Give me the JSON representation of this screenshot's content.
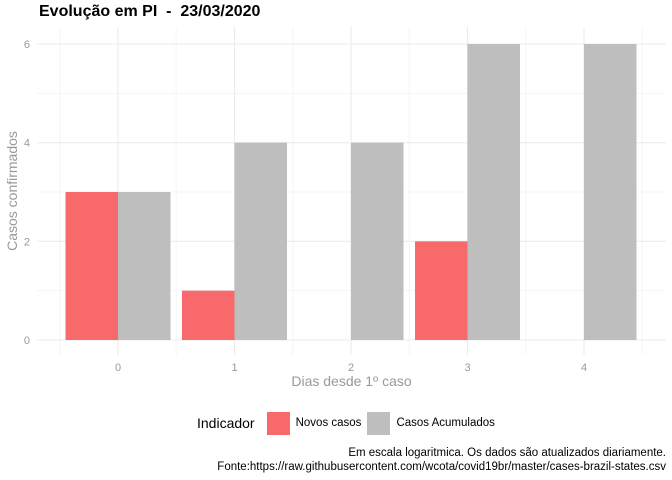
{
  "title": "Evolução em PI  -  23/03/2020",
  "caption": {
    "line1": "Em escala logaritmica. Os dados são atualizados diariamente.",
    "line2": "Fonte:https://raw.githubusercontent.com/wcota/covid19br/master/cases-brazil-states.csv"
  },
  "legend": {
    "title": "Indicador"
  },
  "colors": {
    "novos": "#f8696b",
    "acumulados": "#bebebe",
    "grid_major": "#ebebeb",
    "grid_minor": "#f5f5f5",
    "axis_text": "#999999"
  },
  "chart_data": {
    "type": "bar",
    "title": "Evolução em PI  -  23/03/2020",
    "xlabel": "Dias desde 1º caso",
    "ylabel": "Casos confirmados",
    "categories": [
      "0",
      "1",
      "2",
      "3",
      "4"
    ],
    "x_ticks": [
      "0",
      "1",
      "2",
      "3",
      "4"
    ],
    "y_ticks": [
      "0",
      "2",
      "4",
      "6"
    ],
    "ylim": [
      0,
      6
    ],
    "grid": true,
    "legend_position": "bottom",
    "series": [
      {
        "name": "Novos casos",
        "values": [
          3,
          1,
          0,
          2,
          0
        ]
      },
      {
        "name": "Casos Acumulados",
        "values": [
          3,
          4,
          4,
          6,
          6
        ]
      }
    ]
  }
}
